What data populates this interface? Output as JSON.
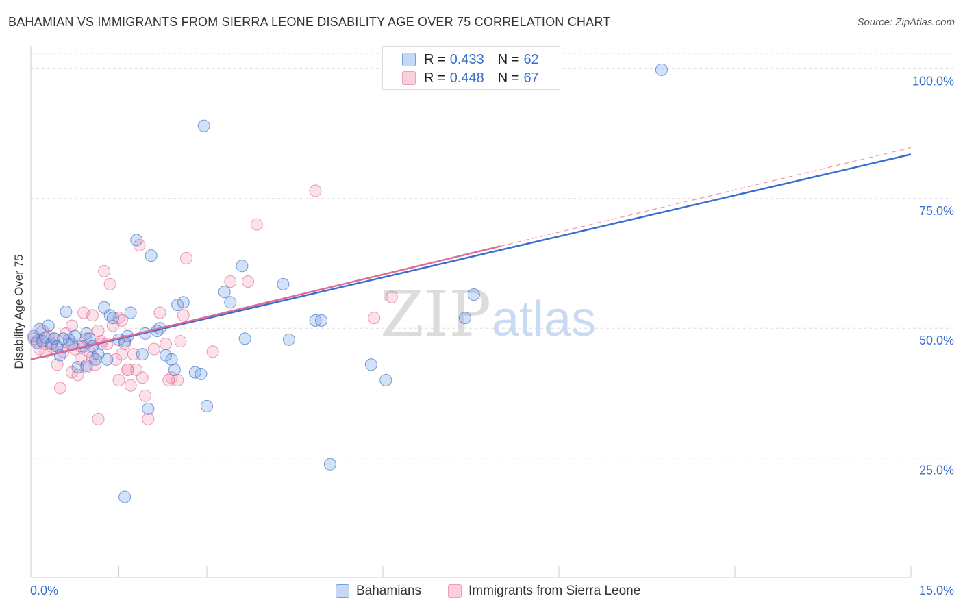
{
  "header": {
    "title": "BAHAMIAN VS IMMIGRANTS FROM SIERRA LEONE DISABILITY AGE OVER 75 CORRELATION CHART",
    "source": "Source: ZipAtlas.com"
  },
  "watermark": {
    "zip": "ZIP",
    "atlas": "atlas"
  },
  "legend": {
    "rows": [
      {
        "r_label": "R = ",
        "r_value": "0.433",
        "n_label": "N = ",
        "n_value": "62"
      },
      {
        "r_label": "R = ",
        "r_value": "0.448",
        "n_label": "N = ",
        "n_value": "67"
      }
    ]
  },
  "chart_data": {
    "type": "scatter",
    "title": "BAHAMIAN VS IMMIGRANTS FROM SIERRA LEONE DISABILITY AGE OVER 75 CORRELATION CHART",
    "xlabel": "",
    "ylabel": "Disability Age Over 75",
    "xlim": [
      0,
      15
    ],
    "ylim": [
      2,
      104
    ],
    "x_tick_labels": [
      "0.0%",
      "15.0%"
    ],
    "y_ticks": [
      25,
      50,
      75,
      100
    ],
    "y_tick_labels": [
      "25.0%",
      "50.0%",
      "75.0%",
      "100.0%"
    ],
    "grid": "horizontal dashed",
    "legend_position": "top-center",
    "colors": {
      "bahamians": "#6f9fe6",
      "sierra_leone": "#f29bb6",
      "blue_line": "#3a6fcf",
      "pink_line": "#e06a95",
      "tick_label": "#3a6fcf"
    },
    "series": [
      {
        "name": "Bahamians",
        "r": 0.433,
        "n": 62,
        "trend": {
          "x": [
            0,
            15
          ],
          "y": [
            44.0,
            83.5
          ]
        },
        "points": [
          [
            0.05,
            48.5
          ],
          [
            0.1,
            47.2
          ],
          [
            0.15,
            49.8
          ],
          [
            0.2,
            47.5
          ],
          [
            0.25,
            48.2
          ],
          [
            0.3,
            50.5
          ],
          [
            0.35,
            47.0
          ],
          [
            0.4,
            48.0
          ],
          [
            0.45,
            46.5
          ],
          [
            0.5,
            44.8
          ],
          [
            0.6,
            53.2
          ],
          [
            0.65,
            47.8
          ],
          [
            0.7,
            47.0
          ],
          [
            0.8,
            42.5
          ],
          [
            0.9,
            46.5
          ],
          [
            0.95,
            49.0
          ],
          [
            1.0,
            48.0
          ],
          [
            1.1,
            44.0
          ],
          [
            1.15,
            45.0
          ],
          [
            1.25,
            54.0
          ],
          [
            1.35,
            52.5
          ],
          [
            1.4,
            52.0
          ],
          [
            1.5,
            47.8
          ],
          [
            1.6,
            47.5
          ],
          [
            1.65,
            48.5
          ],
          [
            1.7,
            53.0
          ],
          [
            1.8,
            67.0
          ],
          [
            1.9,
            45.0
          ],
          [
            2.0,
            34.5
          ],
          [
            2.05,
            64.0
          ],
          [
            2.2,
            50.0
          ],
          [
            2.3,
            44.8
          ],
          [
            2.4,
            44.0
          ],
          [
            2.5,
            54.5
          ],
          [
            2.6,
            55.0
          ],
          [
            2.8,
            41.5
          ],
          [
            2.9,
            41.2
          ],
          [
            3.0,
            35.0
          ],
          [
            3.3,
            57.0
          ],
          [
            3.4,
            55.0
          ],
          [
            3.6,
            62.0
          ],
          [
            3.65,
            48.0
          ],
          [
            4.3,
            58.5
          ],
          [
            4.4,
            47.8
          ],
          [
            4.85,
            51.5
          ],
          [
            4.95,
            51.5
          ],
          [
            5.1,
            23.8
          ],
          [
            5.8,
            43.0
          ],
          [
            6.05,
            40.0
          ],
          [
            7.4,
            52.0
          ],
          [
            7.55,
            56.5
          ],
          [
            10.75,
            99.8
          ],
          [
            2.95,
            89.0
          ],
          [
            1.6,
            17.5
          ],
          [
            0.95,
            42.8
          ],
          [
            1.95,
            49.0
          ],
          [
            2.45,
            42.0
          ],
          [
            1.3,
            44.0
          ],
          [
            0.55,
            48.0
          ],
          [
            1.05,
            46.5
          ],
          [
            2.15,
            49.5
          ],
          [
            0.75,
            48.5
          ]
        ]
      },
      {
        "name": "Immigrants from Sierra Leone",
        "r": 0.448,
        "n": 67,
        "trend": {
          "x": [
            0,
            8
          ],
          "y": [
            44.0,
            65.8
          ]
        },
        "trend_extension": {
          "x": [
            8,
            15
          ],
          "y": [
            65.8,
            84.8
          ]
        },
        "points": [
          [
            0.05,
            48.0
          ],
          [
            0.1,
            47.5
          ],
          [
            0.15,
            46.0
          ],
          [
            0.2,
            49.5
          ],
          [
            0.25,
            47.0
          ],
          [
            0.3,
            48.5
          ],
          [
            0.35,
            46.5
          ],
          [
            0.4,
            48.0
          ],
          [
            0.45,
            43.0
          ],
          [
            0.5,
            38.5
          ],
          [
            0.55,
            45.5
          ],
          [
            0.6,
            49.0
          ],
          [
            0.65,
            47.0
          ],
          [
            0.7,
            41.5
          ],
          [
            0.75,
            46.0
          ],
          [
            0.8,
            41.0
          ],
          [
            0.85,
            46.5
          ],
          [
            0.9,
            53.0
          ],
          [
            0.95,
            48.0
          ],
          [
            1.0,
            45.5
          ],
          [
            1.05,
            44.5
          ],
          [
            1.1,
            43.0
          ],
          [
            1.15,
            32.5
          ],
          [
            1.2,
            47.5
          ],
          [
            1.25,
            61.0
          ],
          [
            1.3,
            47.0
          ],
          [
            1.35,
            58.5
          ],
          [
            1.4,
            50.5
          ],
          [
            1.45,
            44.0
          ],
          [
            1.5,
            52.0
          ],
          [
            1.55,
            45.0
          ],
          [
            1.6,
            47.0
          ],
          [
            1.65,
            42.0
          ],
          [
            1.7,
            39.0
          ],
          [
            1.75,
            45.0
          ],
          [
            1.8,
            42.0
          ],
          [
            1.85,
            66.0
          ],
          [
            1.9,
            40.5
          ],
          [
            1.95,
            37.0
          ],
          [
            2.0,
            32.5
          ],
          [
            2.1,
            46.0
          ],
          [
            2.2,
            53.0
          ],
          [
            2.3,
            47.0
          ],
          [
            2.4,
            40.5
          ],
          [
            2.5,
            40.0
          ],
          [
            2.55,
            47.5
          ],
          [
            2.6,
            52.5
          ],
          [
            2.65,
            63.5
          ],
          [
            3.1,
            45.5
          ],
          [
            3.4,
            59.0
          ],
          [
            3.7,
            59.0
          ],
          [
            3.85,
            70.0
          ],
          [
            4.85,
            76.5
          ],
          [
            5.85,
            52.0
          ],
          [
            6.15,
            56.0
          ],
          [
            1.05,
            52.5
          ],
          [
            0.45,
            46.5
          ],
          [
            0.7,
            50.5
          ],
          [
            1.15,
            49.5
          ],
          [
            1.5,
            40.0
          ],
          [
            2.35,
            40.0
          ],
          [
            0.85,
            44.0
          ],
          [
            1.55,
            51.5
          ],
          [
            1.65,
            42.0
          ],
          [
            0.25,
            45.5
          ],
          [
            0.95,
            42.5
          ],
          [
            1.2,
            47.0
          ]
        ]
      }
    ]
  },
  "bottom_legend": {
    "items": [
      {
        "label": "Bahamians"
      },
      {
        "label": "Immigrants from Sierra Leone"
      }
    ]
  }
}
